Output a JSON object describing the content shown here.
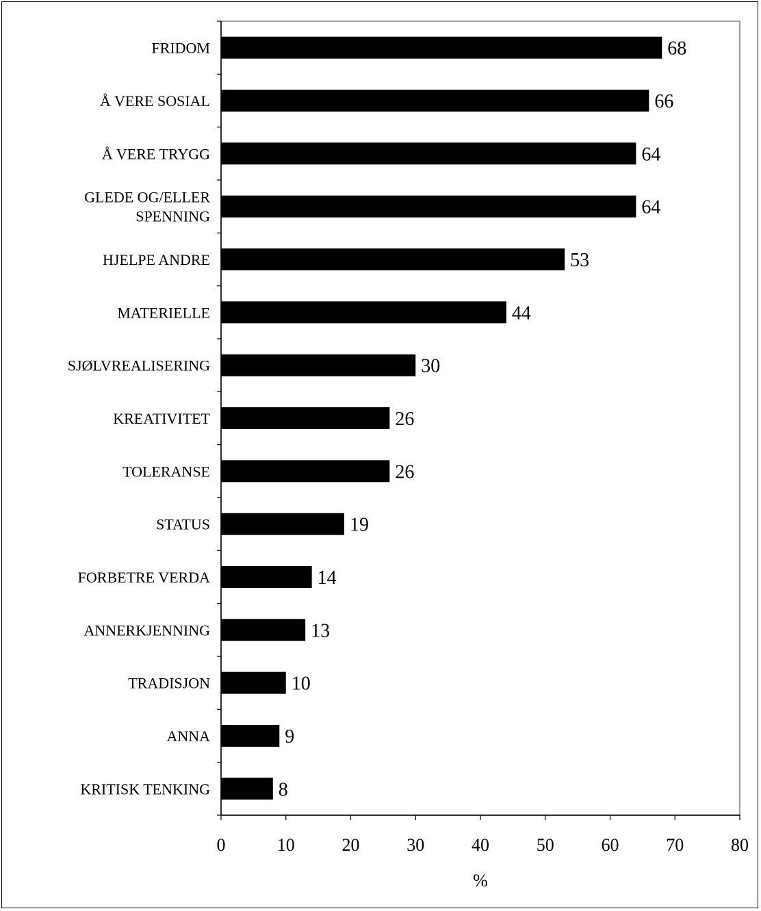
{
  "chart_data": {
    "type": "bar",
    "orientation": "horizontal",
    "categories": [
      "FRIDOM",
      "Å VERE SOSIAL",
      "Å VERE TRYGG",
      "GLEDE OG/ELLER SPENNING",
      "HJELPE ANDRE",
      "MATERIELLE",
      "SJØLVREALISERING",
      "KREATIVITET",
      "TOLERANSE",
      "STATUS",
      "FORBETRE VERDA",
      "ANNERKJENNING",
      "TRADISJON",
      "ANNA",
      "KRITISK TENKING"
    ],
    "values": [
      68,
      66,
      64,
      64,
      53,
      44,
      30,
      26,
      26,
      19,
      14,
      13,
      10,
      9,
      8
    ],
    "xlabel": "%",
    "ylabel": "",
    "xlim": [
      0,
      80
    ],
    "xticks": [
      0,
      10,
      20,
      30,
      40,
      50,
      60,
      70,
      80
    ],
    "grid": false,
    "bar_color": "#000000"
  }
}
